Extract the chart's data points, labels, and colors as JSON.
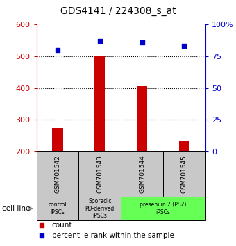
{
  "title": "GDS4141 / 224308_s_at",
  "samples": [
    "GSM701542",
    "GSM701543",
    "GSM701544",
    "GSM701545"
  ],
  "counts": [
    275,
    500,
    405,
    232
  ],
  "percentile_ranks": [
    80,
    87,
    86,
    83
  ],
  "ylim_left": [
    200,
    600
  ],
  "ylim_right": [
    0,
    100
  ],
  "yticks_left": [
    200,
    300,
    400,
    500,
    600
  ],
  "yticks_right": [
    0,
    25,
    50,
    75,
    100
  ],
  "bar_color": "#cc0000",
  "dot_color": "#0000cc",
  "bar_width": 0.25,
  "groups": [
    {
      "label": "control\nIPSCs",
      "samples": [
        "GSM701542"
      ],
      "color": "#c8c8c8"
    },
    {
      "label": "Sporadic\nPD-derived\niPSCs",
      "samples": [
        "GSM701543"
      ],
      "color": "#c8c8c8"
    },
    {
      "label": "presenilin 2 (PS2)\niPSCs",
      "samples": [
        "GSM701544",
        "GSM701545"
      ],
      "color": "#66ff55"
    }
  ],
  "cell_line_label": "cell line",
  "legend_count_label": "count",
  "legend_percentile_label": "percentile rank within the sample",
  "left_axis_color": "#cc0000",
  "right_axis_color": "#0000cc",
  "grid_color": "#000000",
  "sample_box_color": "#c8c8c8",
  "title_fontsize": 10,
  "tick_fontsize": 8,
  "label_fontsize": 7
}
